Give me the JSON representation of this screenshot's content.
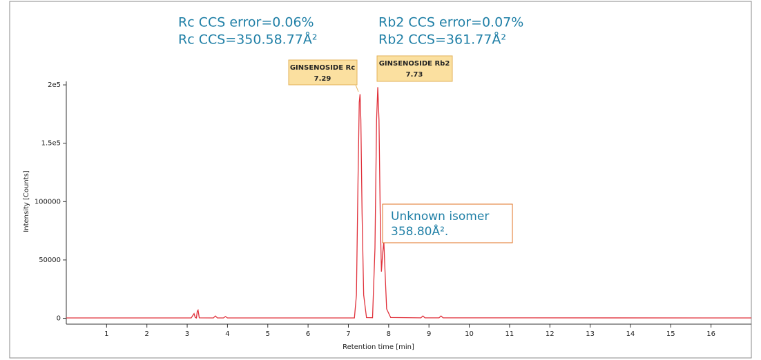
{
  "chart_data": {
    "type": "line",
    "x_label": "Retention time [min]",
    "y_label": "Intensity [Counts]",
    "x": [
      0,
      3.1,
      3.17,
      3.2,
      3.23,
      3.25,
      3.27,
      3.3,
      3.65,
      3.7,
      3.75,
      3.9,
      3.95,
      4.0,
      7.15,
      7.2,
      7.24,
      7.27,
      7.29,
      7.31,
      7.34,
      7.38,
      7.45,
      7.6,
      7.66,
      7.7,
      7.73,
      7.76,
      7.79,
      7.82,
      7.85,
      7.88,
      7.91,
      7.95,
      8.05,
      8.8,
      8.85,
      8.9,
      9.25,
      9.3,
      9.35,
      17
    ],
    "series": [
      {
        "color": "#e0303a",
        "values": [
          300,
          300,
          4000,
          700,
          300,
          6000,
          7000,
          400,
          300,
          2000,
          300,
          300,
          1500,
          300,
          300,
          20000,
          120000,
          185000,
          192000,
          170000,
          90000,
          20000,
          600,
          500,
          60000,
          170000,
          198000,
          170000,
          90000,
          40000,
          55000,
          66000,
          40000,
          8000,
          700,
          400,
          2000,
          400,
          400,
          2000,
          400,
          300
        ]
      }
    ],
    "xlim": [
      0,
      17
    ],
    "xticks": [
      1,
      2,
      3,
      4,
      5,
      6,
      7,
      8,
      9,
      10,
      11,
      12,
      13,
      14,
      15,
      16
    ],
    "ylim": [
      -5000,
      203000
    ],
    "yticks": [
      0,
      50000,
      100000,
      {
        "value": 150000,
        "label": "1.5e5"
      },
      {
        "value": 200000,
        "label": "2e5"
      }
    ],
    "annotations": {
      "rc_error": "Rc CCS error=0.06%",
      "rc_ccs": "Rc CCS=350.58.77Å²",
      "rb2_error": "Rb2 CCS error=0.07%",
      "rb2_ccs": "Rb2 CCS=361.77Å²",
      "rc_name": "GINSENOSIDE Rc",
      "rc_time": "7.29",
      "rb2_name": "GINSENOSIDE Rb2",
      "rb2_time": "7.73",
      "isomer_name": "Unknown isomer",
      "isomer_ccs": "358.80Å².",
      "isomer_box_color": "#e07020",
      "peak_box_color": "#fbe0a0"
    }
  }
}
